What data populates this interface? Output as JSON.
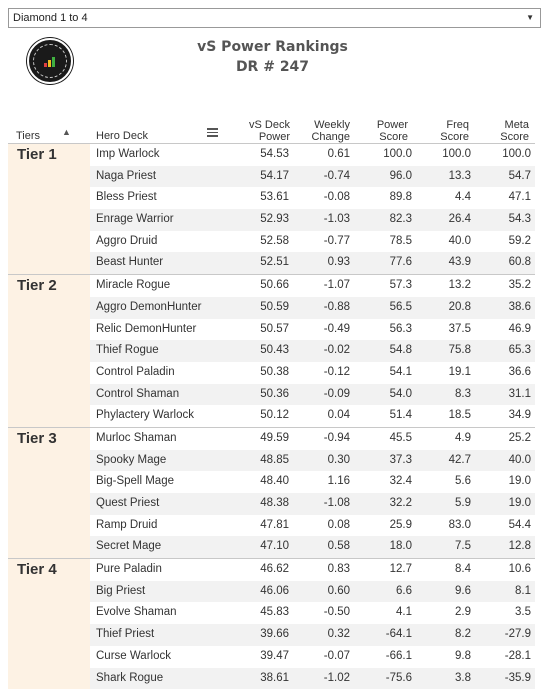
{
  "filter": {
    "selected": "Diamond 1 to 4"
  },
  "title_line1": "vS Power Rankings",
  "title_line2": "DR # 247",
  "columns": {
    "tiers": "Tiers",
    "hero_deck": "Hero Deck",
    "vs_deck_power": [
      "vS Deck",
      "Power"
    ],
    "weekly_change": [
      "Weekly",
      "Change"
    ],
    "power_score": [
      "Power",
      "Score"
    ],
    "freq_score": [
      "Freq",
      "Score"
    ],
    "meta_score": [
      "Meta",
      "Score"
    ]
  },
  "tiers": [
    {
      "label": "Tier 1",
      "rows": [
        [
          "Imp Warlock",
          "54.53",
          "0.61",
          "100.0",
          "100.0",
          "100.0"
        ],
        [
          "Naga Priest",
          "54.17",
          "-0.74",
          "96.0",
          "13.3",
          "54.7"
        ],
        [
          "Bless Priest",
          "53.61",
          "-0.08",
          "89.8",
          "4.4",
          "47.1"
        ],
        [
          "Enrage Warrior",
          "52.93",
          "-1.03",
          "82.3",
          "26.4",
          "54.3"
        ],
        [
          "Aggro Druid",
          "52.58",
          "-0.77",
          "78.5",
          "40.0",
          "59.2"
        ],
        [
          "Beast Hunter",
          "52.51",
          "0.93",
          "77.6",
          "43.9",
          "60.8"
        ]
      ]
    },
    {
      "label": "Tier 2",
      "rows": [
        [
          "Miracle Rogue",
          "50.66",
          "-1.07",
          "57.3",
          "13.2",
          "35.2"
        ],
        [
          "Aggro DemonHunter",
          "50.59",
          "-0.88",
          "56.5",
          "20.8",
          "38.6"
        ],
        [
          "Relic DemonHunter",
          "50.57",
          "-0.49",
          "56.3",
          "37.5",
          "46.9"
        ],
        [
          "Thief Rogue",
          "50.43",
          "-0.02",
          "54.8",
          "75.8",
          "65.3"
        ],
        [
          "Control Paladin",
          "50.38",
          "-0.12",
          "54.1",
          "19.1",
          "36.6"
        ],
        [
          "Control Shaman",
          "50.36",
          "-0.09",
          "54.0",
          "8.3",
          "31.1"
        ],
        [
          "Phylactery Warlock",
          "50.12",
          "0.04",
          "51.4",
          "18.5",
          "34.9"
        ]
      ]
    },
    {
      "label": "Tier 3",
      "rows": [
        [
          "Murloc Shaman",
          "49.59",
          "-0.94",
          "45.5",
          "4.9",
          "25.2"
        ],
        [
          "Spooky Mage",
          "48.85",
          "0.30",
          "37.3",
          "42.7",
          "40.0"
        ],
        [
          "Big-Spell Mage",
          "48.40",
          "1.16",
          "32.4",
          "5.6",
          "19.0"
        ],
        [
          "Quest Priest",
          "48.38",
          "-1.08",
          "32.2",
          "5.9",
          "19.0"
        ],
        [
          "Ramp Druid",
          "47.81",
          "0.08",
          "25.9",
          "83.0",
          "54.4"
        ],
        [
          "Secret Mage",
          "47.10",
          "0.58",
          "18.0",
          "7.5",
          "12.8"
        ]
      ]
    },
    {
      "label": "Tier 4",
      "rows": [
        [
          "Pure Paladin",
          "46.62",
          "0.83",
          "12.7",
          "8.4",
          "10.6"
        ],
        [
          "Big Priest",
          "46.06",
          "0.60",
          "6.6",
          "9.6",
          "8.1"
        ],
        [
          "Evolve Shaman",
          "45.83",
          "-0.50",
          "4.1",
          "2.9",
          "3.5"
        ],
        [
          "Thief Priest",
          "39.66",
          "0.32",
          "-64.1",
          "8.2",
          "-27.9"
        ],
        [
          "Curse Warlock",
          "39.47",
          "-0.07",
          "-66.1",
          "9.8",
          "-28.1"
        ],
        [
          "Shark Rogue",
          "38.61",
          "-1.02",
          "-75.6",
          "3.8",
          "-35.9"
        ]
      ]
    }
  ],
  "colors": {
    "tier_bg": "#fdf2e4",
    "alt_row": "#f2f2f2"
  }
}
